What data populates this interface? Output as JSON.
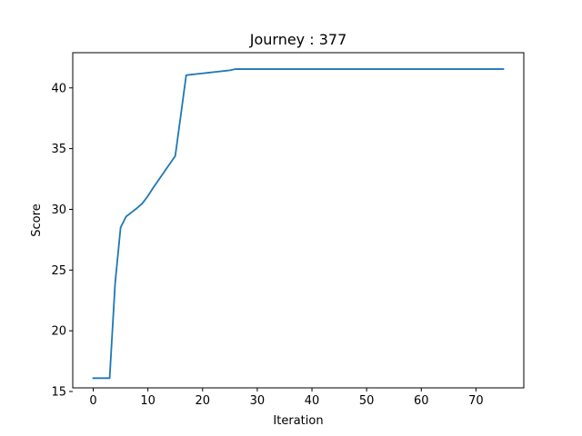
{
  "chart_data": {
    "type": "line",
    "title": "Journey : 377",
    "xlabel": "Iteration",
    "ylabel": "Score",
    "xlim": [
      -3.75,
      78.75
    ],
    "ylim": [
      15.3,
      42.9
    ],
    "xticks": [
      0,
      10,
      20,
      30,
      40,
      50,
      60,
      70
    ],
    "yticks": [
      15,
      20,
      25,
      30,
      35,
      40
    ],
    "grid": false,
    "line_color": "#1f77b4",
    "series": [
      {
        "x": [
          0,
          1,
          2,
          3,
          4,
          5,
          6,
          7,
          8,
          9,
          10,
          11,
          12,
          13,
          14,
          15,
          16,
          17,
          18,
          19,
          20,
          21,
          22,
          23,
          24,
          25,
          26,
          27,
          28,
          29,
          30,
          40,
          50,
          60,
          70,
          75
        ],
        "y": [
          16.1,
          16.1,
          16.1,
          16.1,
          23.9,
          28.5,
          29.4,
          29.75,
          30.1,
          30.5,
          31.1,
          31.8,
          32.45,
          33.1,
          33.75,
          34.4,
          37.7,
          41.05,
          41.1,
          41.15,
          41.2,
          41.25,
          41.3,
          41.35,
          41.4,
          41.45,
          41.55,
          41.55,
          41.55,
          41.55,
          41.55,
          41.55,
          41.55,
          41.55,
          41.55,
          41.55
        ]
      }
    ]
  }
}
